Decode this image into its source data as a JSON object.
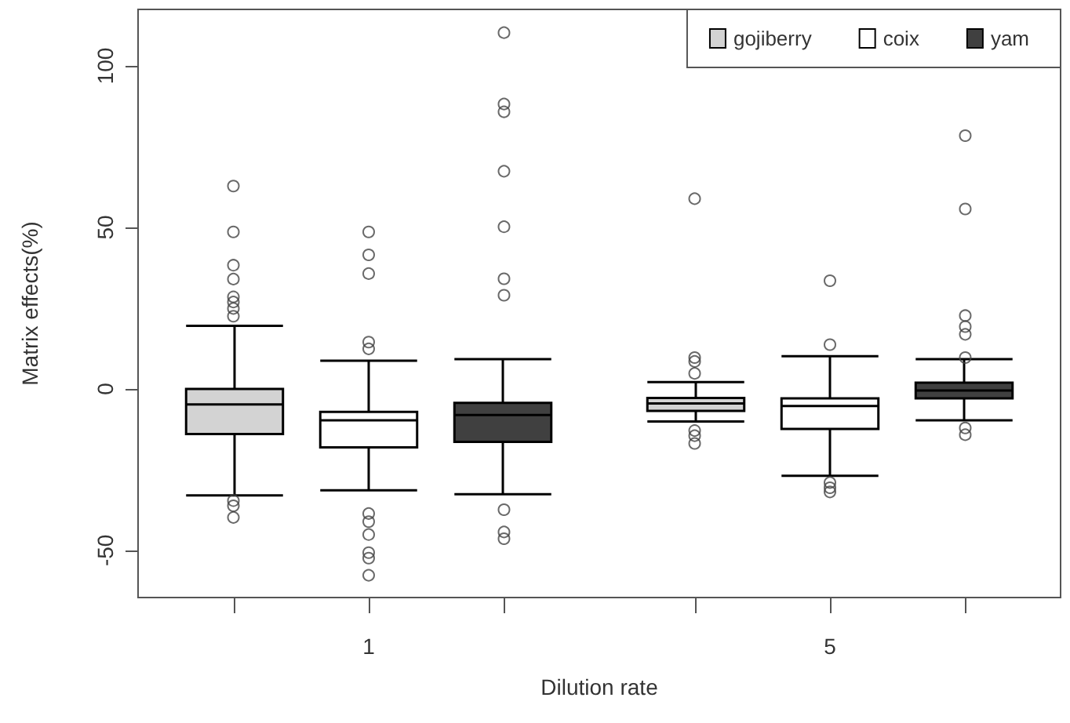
{
  "chart_data": {
    "type": "box",
    "xlabel": "Dilution rate",
    "ylabel": "Matrix effects(%)",
    "categories": [
      "1",
      "5"
    ],
    "ylim": [
      -64.6,
      117.5
    ],
    "yticks": [
      -50,
      0,
      50,
      100
    ],
    "legend": "top right",
    "series": [
      {
        "name": "gojiberry",
        "color": "#d3d3d3",
        "boxes": [
          {
            "low": -33,
            "q1": -14,
            "median": -4.8,
            "q3": 0,
            "high": 19.5,
            "outliers": [
              62.8,
              48.6,
              38.3,
              34,
              28.5,
              26.9,
              24.9,
              22.5,
              -34.6,
              -36.2,
              -39.8
            ]
          },
          {
            "low": -10.1,
            "q1": -6.8,
            "median": -4.5,
            "q3": -2.8,
            "high": 2.1,
            "outliers": [
              58.9,
              9.7,
              8.5,
              4.8,
              -12.9,
              -14.5,
              -16.9
            ]
          }
        ]
      },
      {
        "name": "coix",
        "color": "#ffffff",
        "boxes": [
          {
            "low": -31.4,
            "q1": -18.1,
            "median": -9.7,
            "q3": -7.1,
            "high": 8.7,
            "outliers": [
              48.6,
              41.5,
              35.7,
              14.5,
              12.4,
              -38.6,
              -41.1,
              -45.1,
              -50.7,
              -52.4,
              -57.7
            ]
          },
          {
            "low": -26.9,
            "q1": -12.4,
            "median": -5.3,
            "q3": -2.9,
            "high": 10.1,
            "outliers": [
              33.5,
              13.7,
              -29,
              -30.6,
              -31.9
            ]
          }
        ]
      },
      {
        "name": "yam",
        "color": "#404040",
        "boxes": [
          {
            "low": -32.6,
            "q1": -16.4,
            "median": -8.1,
            "q3": -4.3,
            "high": 9.2,
            "outliers": [
              110.3,
              88.2,
              85.8,
              67.4,
              50.2,
              34.1,
              29,
              -37.4,
              -44.3,
              -46.4
            ]
          },
          {
            "low": -9.7,
            "q1": -2.9,
            "median": -0.5,
            "q3": 1.9,
            "high": 9.2,
            "outliers": [
              78.4,
              55.7,
              22.7,
              19.3,
              16.9,
              9.7,
              -12.1,
              -14.2
            ]
          }
        ]
      }
    ]
  }
}
